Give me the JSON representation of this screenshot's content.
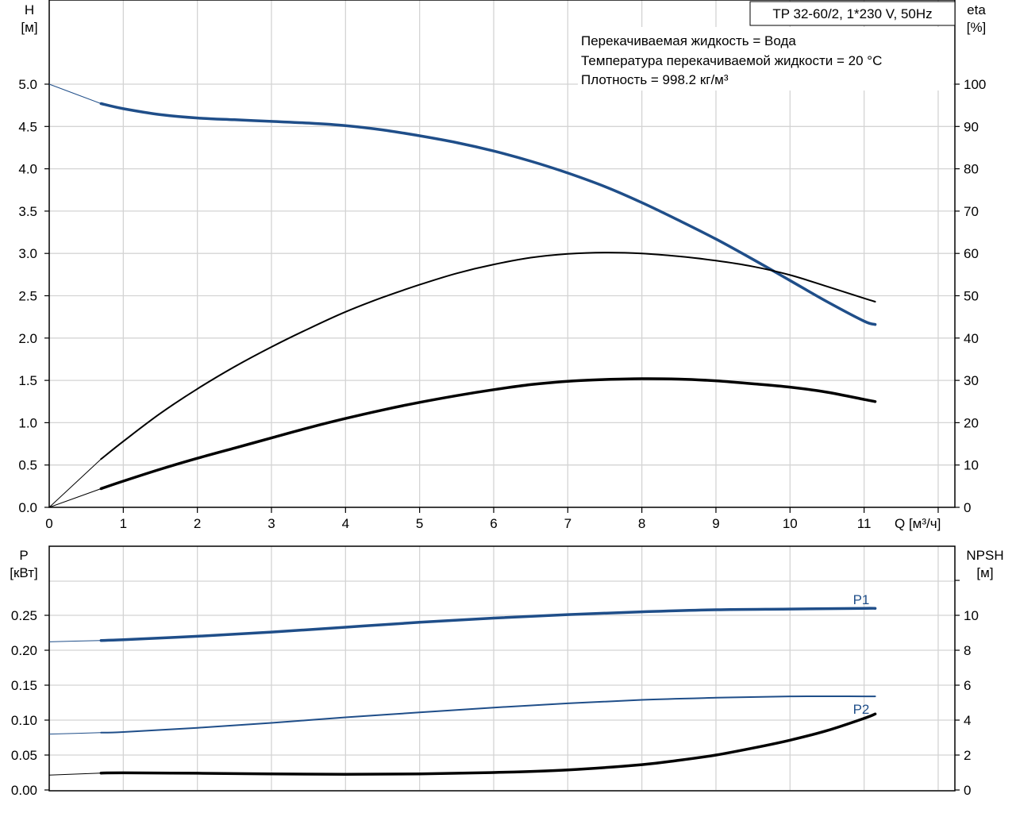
{
  "chart_data": [
    {
      "type": "line",
      "title": "TP 32-60/2, 1*230 V, 50Hz",
      "annotations": [
        "Перекачиваемая жидкость = Вода",
        "Температура перекачиваемой жидкости = 20 °C",
        "Плотность = 998.2 кг/м³"
      ],
      "xlabel": "Q [м³/ч]",
      "xlim": [
        0,
        12.1
      ],
      "xticks": [
        "0",
        "1",
        "2",
        "3",
        "4",
        "5",
        "6",
        "7",
        "8",
        "9",
        "10",
        "11"
      ],
      "ylabel_left": [
        "H",
        "[м]"
      ],
      "ylim_left": [
        0,
        5.5
      ],
      "yticks_left": [
        "0.0",
        "0.5",
        "1.0",
        "1.5",
        "2.0",
        "2.5",
        "3.0",
        "3.5",
        "4.0",
        "4.5",
        "5.0"
      ],
      "ylabel_right": [
        "eta",
        "[%]"
      ],
      "ylim_right": [
        0,
        110
      ],
      "yticks_right": [
        "0",
        "10",
        "20",
        "30",
        "40",
        "50",
        "60",
        "70",
        "80",
        "90",
        "100"
      ],
      "grid": true,
      "colors": {
        "head": "#1f4e89",
        "efficiency": "#000000",
        "grid": "#d4d4d4"
      },
      "series": [
        {
          "axis": "left",
          "operating_range": [
            0.7,
            11.15
          ],
          "x": [
            0,
            0.7,
            1,
            1.5,
            2,
            2.5,
            3,
            3.5,
            4,
            4.5,
            5,
            5.5,
            6,
            6.5,
            7,
            7.5,
            8,
            8.5,
            9,
            9.5,
            10,
            10.5,
            11,
            11.15
          ],
          "y": [
            5.0,
            4.77,
            4.71,
            4.64,
            4.6,
            4.58,
            4.56,
            4.54,
            4.51,
            4.46,
            4.39,
            4.31,
            4.21,
            4.09,
            3.95,
            3.79,
            3.6,
            3.39,
            3.17,
            2.93,
            2.68,
            2.43,
            2.2,
            2.16
          ]
        },
        {
          "axis": "right",
          "operating_range": [
            0.7,
            11.15
          ],
          "x": [
            0,
            0.7,
            1,
            1.5,
            2,
            2.5,
            3,
            3.5,
            4,
            4.5,
            5,
            5.5,
            6,
            6.5,
            7,
            7.5,
            8,
            8.5,
            9,
            9.5,
            10,
            10.5,
            11,
            11.15
          ],
          "y": [
            0,
            11.4,
            15.6,
            22.2,
            28.0,
            33.2,
            37.9,
            42.2,
            46.2,
            49.6,
            52.6,
            55.3,
            57.4,
            59.0,
            59.9,
            60.2,
            60.0,
            59.3,
            58.3,
            56.9,
            54.9,
            52.2,
            49.4,
            48.6
          ]
        },
        {
          "axis": "right",
          "operating_range": [
            0.7,
            11.15
          ],
          "x": [
            0,
            0.7,
            1,
            1.5,
            2,
            2.5,
            3,
            3.5,
            4,
            4.5,
            5,
            5.5,
            6,
            6.5,
            7,
            7.5,
            8,
            8.5,
            9,
            9.5,
            10,
            10.5,
            11,
            11.15
          ],
          "y": [
            0,
            4.4,
            6.2,
            9.0,
            11.6,
            14.0,
            16.4,
            18.8,
            21.0,
            23.0,
            24.8,
            26.4,
            27.8,
            29.0,
            29.8,
            30.2,
            30.4,
            30.3,
            29.9,
            29.2,
            28.4,
            27.2,
            25.5,
            25.0
          ]
        }
      ]
    },
    {
      "type": "line",
      "xlim": [
        0,
        12.1
      ],
      "ylabel_left": [
        "P",
        "[кВт]"
      ],
      "ylim_left": [
        0,
        0.3
      ],
      "yticks_left": [
        "0.00",
        "0.05",
        "0.10",
        "0.15",
        "0.20",
        "0.25"
      ],
      "ylabel_right": [
        "NPSH",
        "[м]"
      ],
      "ylim_right": [
        0,
        12
      ],
      "yticks_right": [
        "0",
        "2",
        "4",
        "6",
        "8",
        "10"
      ],
      "grid": true,
      "colors": {
        "power": "#1f4e89",
        "npsh": "#000000"
      },
      "series": [
        {
          "name": "P1",
          "axis": "left",
          "operating_range": [
            0.7,
            11.15
          ],
          "x": [
            0,
            0.7,
            1,
            2,
            3,
            4,
            5,
            6,
            7,
            8,
            9,
            10,
            11,
            11.15
          ],
          "y": [
            0.212,
            0.214,
            0.215,
            0.22,
            0.226,
            0.233,
            0.24,
            0.246,
            0.251,
            0.255,
            0.258,
            0.259,
            0.26,
            0.26
          ]
        },
        {
          "name": "P2",
          "axis": "left",
          "operating_range": [
            0.7,
            11.15
          ],
          "x": [
            0,
            0.7,
            1,
            2,
            3,
            4,
            5,
            6,
            7,
            8,
            9,
            10,
            11,
            11.15
          ],
          "y": [
            0.08,
            0.082,
            0.083,
            0.089,
            0.096,
            0.104,
            0.111,
            0.118,
            0.124,
            0.129,
            0.132,
            0.134,
            0.134,
            0.134
          ]
        },
        {
          "axis": "right",
          "operating_range": [
            0.7,
            11.15
          ],
          "x": [
            0,
            0.7,
            1,
            2,
            3,
            4,
            5,
            6,
            7,
            8,
            8.5,
            9,
            9.5,
            10,
            10.5,
            11,
            11.15
          ],
          "y": [
            0.85,
            0.97,
            0.98,
            0.96,
            0.92,
            0.9,
            0.92,
            1.0,
            1.15,
            1.45,
            1.7,
            2.0,
            2.4,
            2.85,
            3.4,
            4.1,
            4.35
          ]
        }
      ]
    }
  ]
}
